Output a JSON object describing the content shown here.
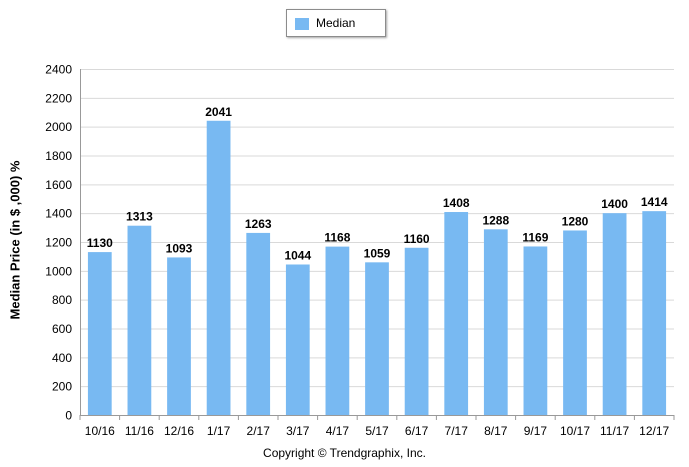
{
  "chart_data": {
    "type": "bar",
    "categories": [
      "10/16",
      "11/16",
      "12/16",
      "1/17",
      "2/17",
      "3/17",
      "4/17",
      "5/17",
      "6/17",
      "7/17",
      "8/17",
      "9/17",
      "10/17",
      "11/17",
      "12/17"
    ],
    "series": [
      {
        "name": "Median",
        "values": [
          1130,
          1313,
          1093,
          2041,
          1263,
          1044,
          1168,
          1059,
          1160,
          1408,
          1288,
          1169,
          1280,
          1400,
          1414
        ]
      }
    ],
    "title": "",
    "xlabel": "",
    "ylabel": "Median Price (in $ ,000) %",
    "ylim": [
      0,
      2400
    ],
    "yticks": [
      0,
      200,
      400,
      600,
      800,
      1000,
      1200,
      1400,
      1600,
      1800,
      2000,
      2200,
      2400
    ],
    "grid": true,
    "legend_position": "top-center",
    "data_labels": true,
    "bar_color": "#78b9f2",
    "copyright": "Copyright © Trendgraphix, Inc."
  }
}
